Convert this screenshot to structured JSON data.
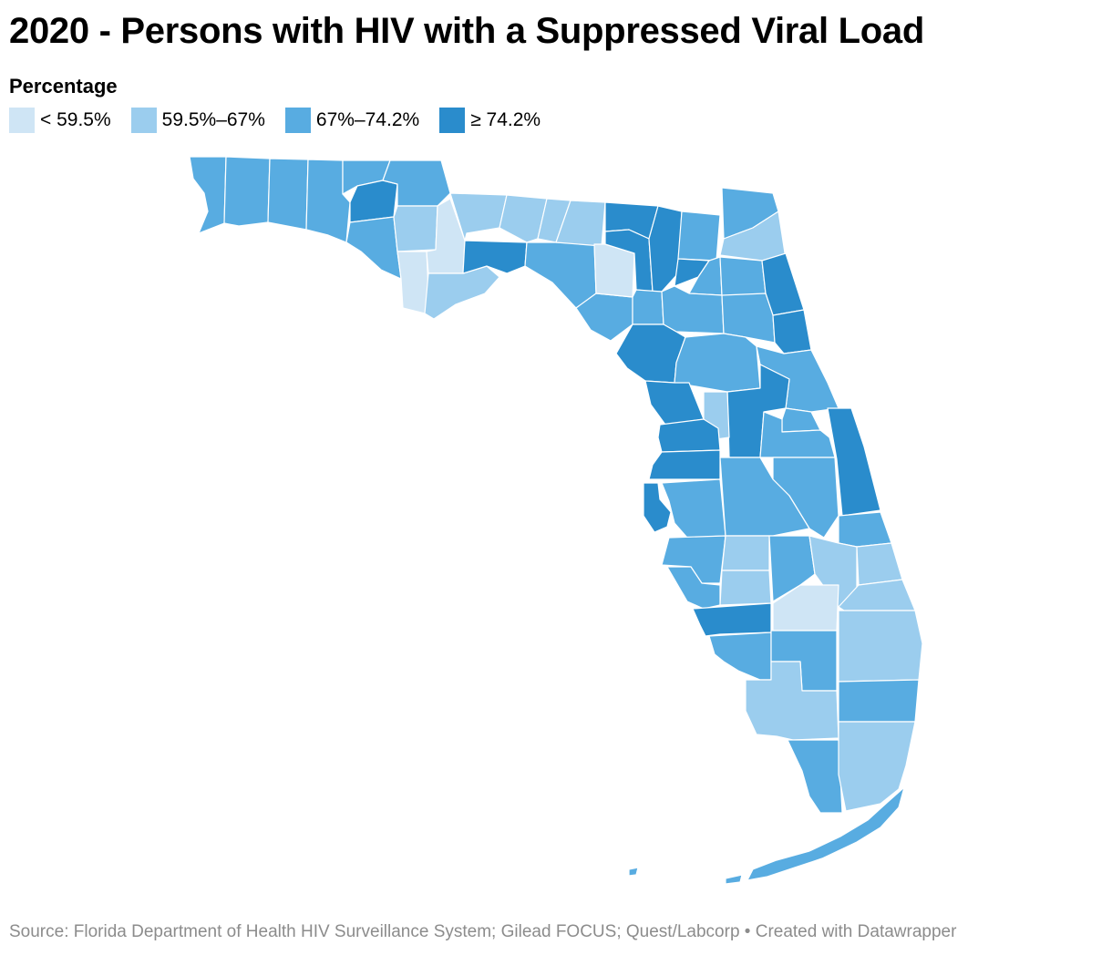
{
  "title": "2020 - Persons with HIV with a Suppressed Viral Load",
  "legend": {
    "title": "Percentage",
    "items": [
      {
        "label": "< 59.5%",
        "color": "#cfe5f5"
      },
      {
        "label": "59.5%–67%",
        "color": "#9bcdee"
      },
      {
        "label": "67%–74.2%",
        "color": "#58ace1"
      },
      {
        "label": "≥ 74.2%",
        "color": "#2a8ccc"
      }
    ]
  },
  "map": {
    "region": "Florida counties",
    "colors": {
      "c1": "#cfe5f5",
      "c2": "#9bcdee",
      "c3": "#58ace1",
      "c4": "#2a8ccc"
    }
  },
  "source": "Source: Florida Department of Health HIV Surveillance System; Gilead FOCUS; Quest/Labcorp • Created with Datawrapper"
}
